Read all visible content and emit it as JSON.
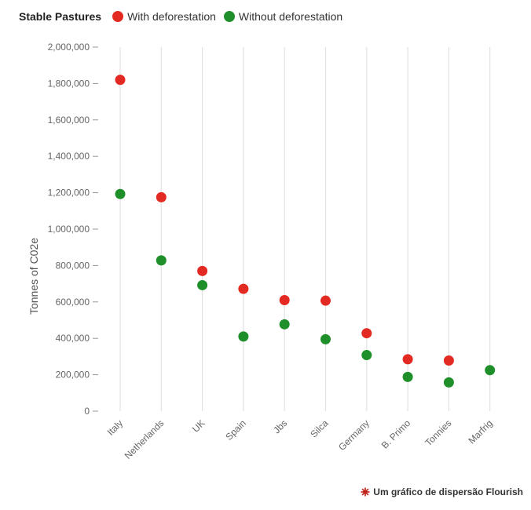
{
  "legend": {
    "title": "Stable Pastures",
    "items": [
      {
        "label": "With deforestation",
        "color": "#e32a22"
      },
      {
        "label": "Without deforestation",
        "color": "#1f8f2a"
      }
    ]
  },
  "footer": {
    "label": "Um gráfico de dispersão Flourish",
    "icon": "flourish-logo-icon",
    "icon_color": "#c0231b"
  },
  "chart_data": {
    "type": "scatter",
    "ylabel": "Tonnes of C02e",
    "xlabel": "",
    "ylim": [
      0,
      2000000
    ],
    "yticks": [
      0,
      200000,
      400000,
      600000,
      800000,
      1000000,
      1200000,
      1400000,
      1600000,
      1800000,
      2000000
    ],
    "ytick_labels": [
      "0",
      "200,000",
      "400,000",
      "600,000",
      "800,000",
      "1,000,000",
      "1,200,000",
      "1,400,000",
      "1,600,000",
      "1,800,000",
      "2,000,000"
    ],
    "categories": [
      "Italy",
      "Netherlands",
      "UK",
      "Spain",
      "Jbs",
      "Silca",
      "Germany",
      "B. Primo",
      "Tonnies",
      "Marfrig"
    ],
    "series": [
      {
        "name": "With deforestation",
        "color": "#e32a22",
        "values": [
          1820000,
          1175000,
          770000,
          672000,
          610000,
          607000,
          428000,
          285000,
          278000,
          null
        ]
      },
      {
        "name": "Without deforestation",
        "color": "#1f8f2a",
        "values": [
          1193000,
          828000,
          692000,
          410000,
          477000,
          395000,
          308000,
          188000,
          158000,
          225000
        ]
      }
    ],
    "grid": "vertical"
  }
}
